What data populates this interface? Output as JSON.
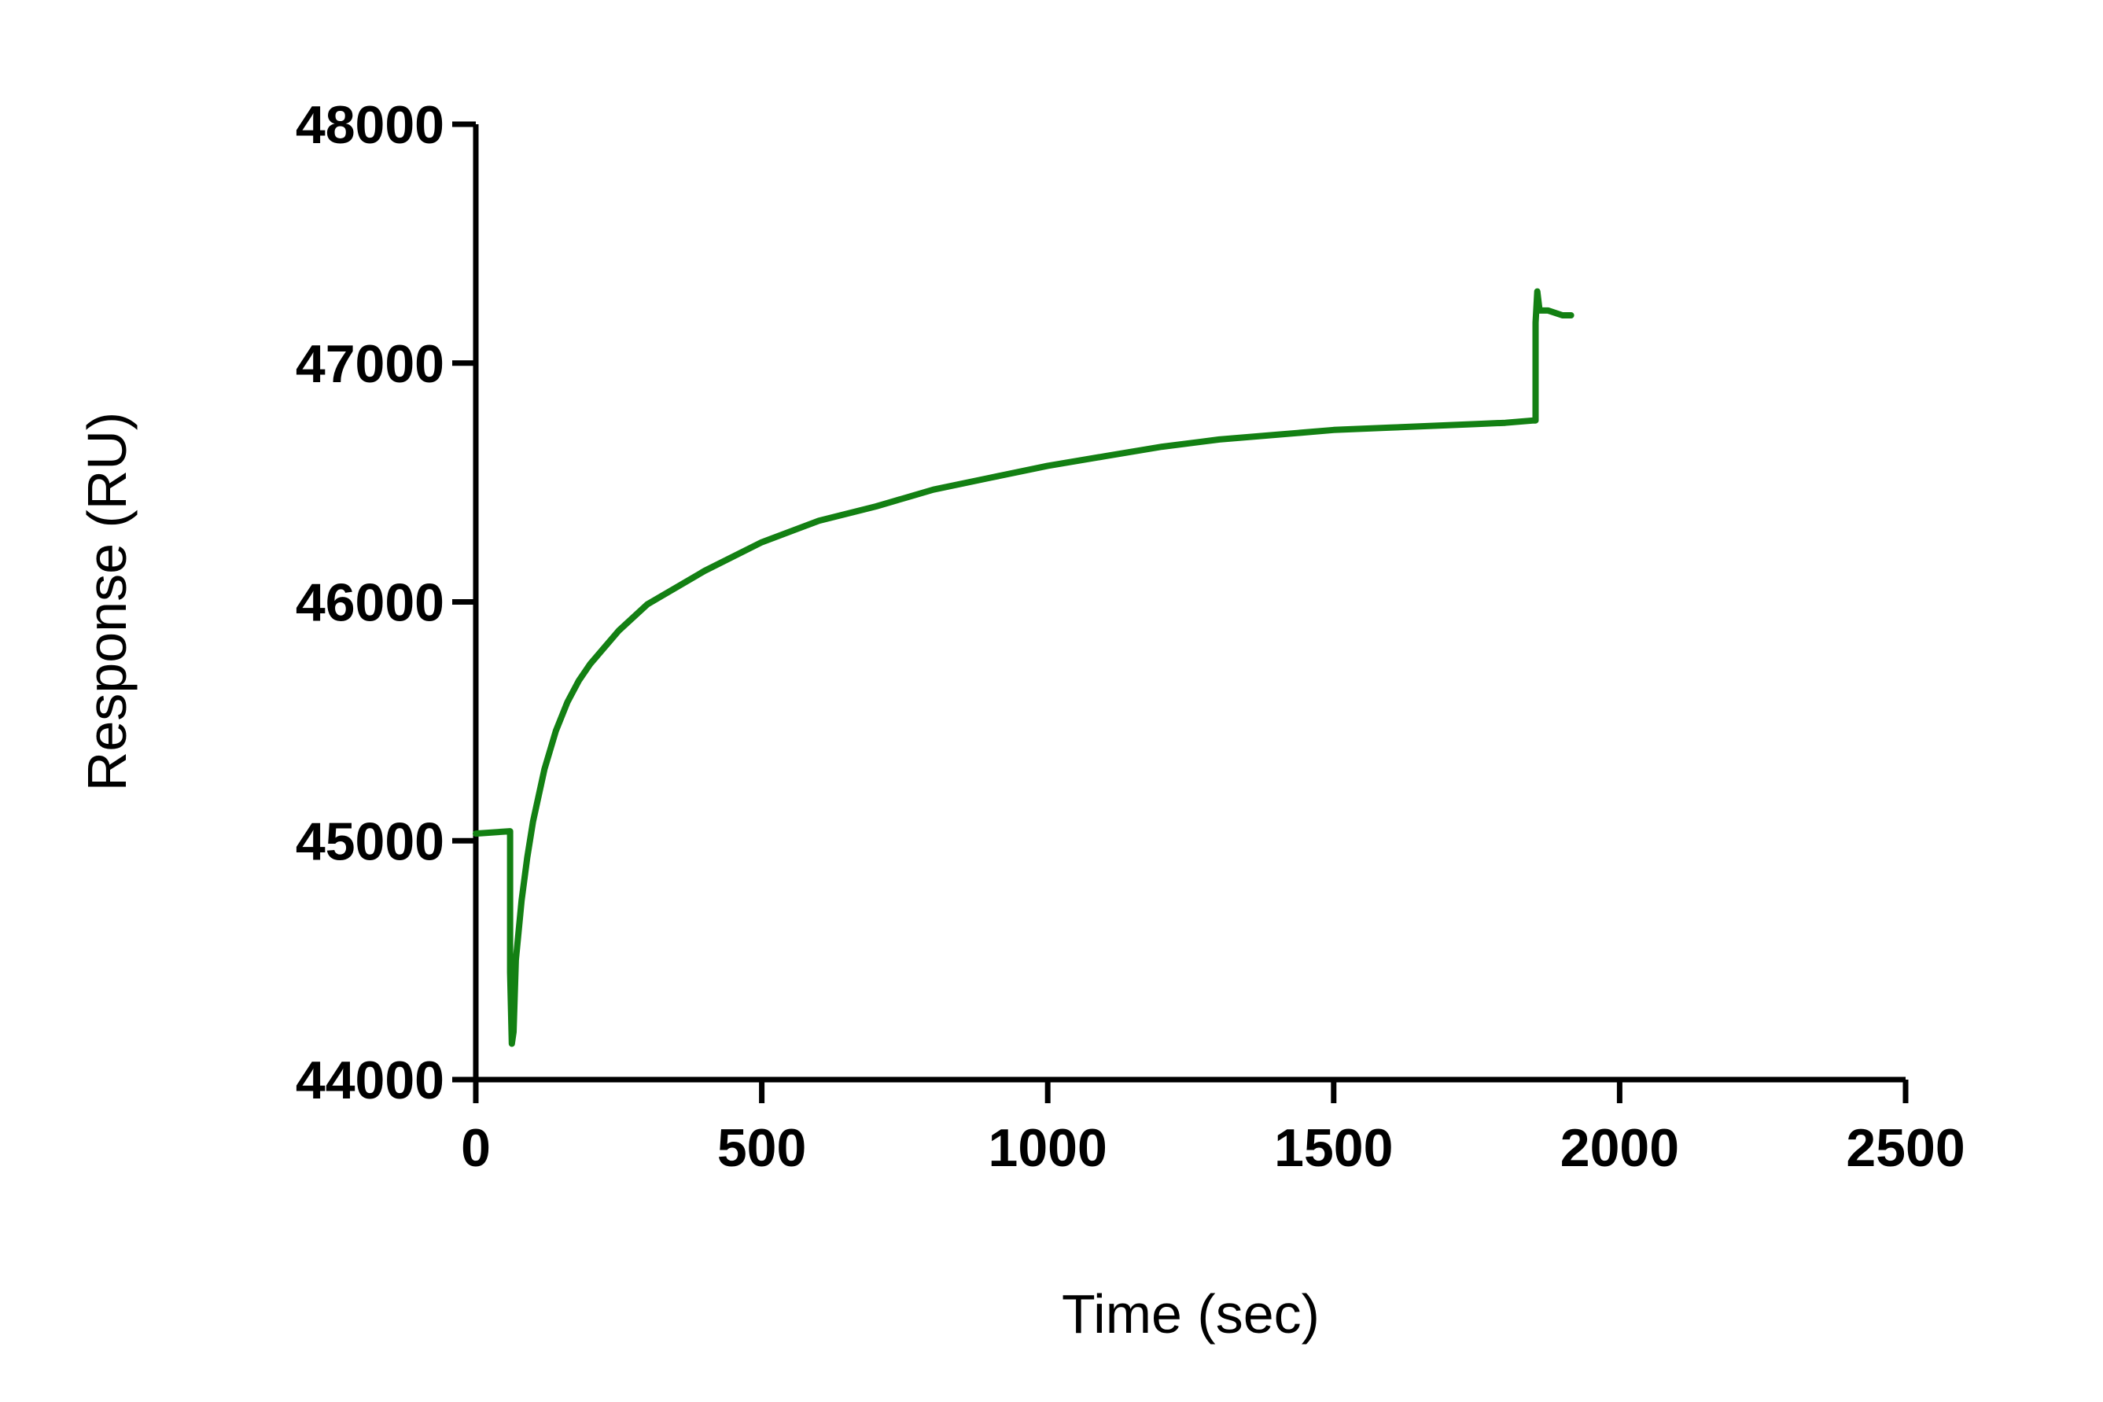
{
  "chart_data": {
    "type": "line",
    "title": "",
    "xlabel": "Time (sec)",
    "ylabel": "Response (RU)",
    "xlim": [
      0,
      2500
    ],
    "ylim": [
      44000,
      48000
    ],
    "x_ticks": [
      "0",
      "500",
      "1000",
      "1500",
      "2000",
      "2500"
    ],
    "y_ticks": [
      "44000",
      "45000",
      "46000",
      "47000",
      "48000"
    ],
    "grid": false,
    "legend": "none",
    "series": [
      {
        "color": "#138013",
        "x": [
          0,
          60,
          60,
          63,
          66,
          70,
          80,
          90,
          100,
          120,
          140,
          160,
          180,
          200,
          250,
          300,
          350,
          400,
          500,
          600,
          700,
          800,
          900,
          1000,
          1100,
          1200,
          1300,
          1400,
          1500,
          1600,
          1700,
          1750,
          1800,
          1850,
          1853,
          1853,
          1856,
          1860,
          1875,
          1900,
          1915
        ],
        "y": [
          45030,
          45040,
          44450,
          44150,
          44200,
          44500,
          44750,
          44930,
          45080,
          45300,
          45460,
          45580,
          45670,
          45740,
          45880,
          45990,
          46060,
          46130,
          46250,
          46340,
          46400,
          46470,
          46520,
          46570,
          46610,
          46650,
          46680,
          46700,
          46720,
          46730,
          46740,
          46745,
          46750,
          46760,
          46760,
          47170,
          47300,
          47220,
          47220,
          47200,
          47200
        ]
      }
    ]
  }
}
